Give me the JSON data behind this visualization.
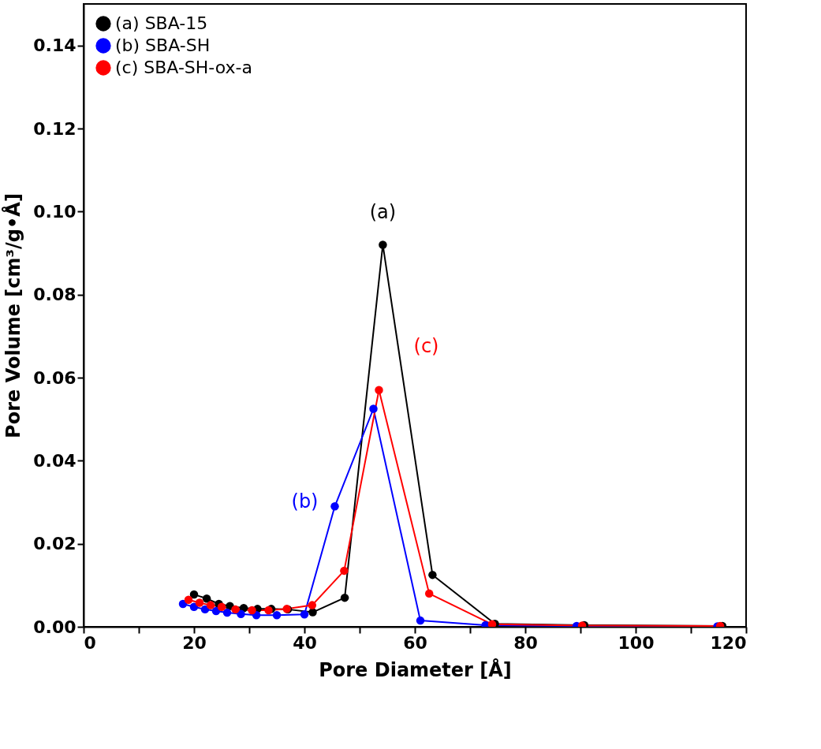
{
  "chart_data": {
    "type": "line",
    "xlabel": "Pore Diameter [Å]",
    "ylabel": "Pore Volume [cm³/g•Å]",
    "xlim": [
      0,
      120
    ],
    "ylim": [
      0,
      0.15
    ],
    "xticks": [
      0,
      {
        "value": 10,
        "label": null
      },
      20,
      {
        "value": 30,
        "label": null
      },
      40,
      {
        "value": 50,
        "label": null
      },
      60,
      {
        "value": 70,
        "label": null
      },
      80,
      {
        "value": 90,
        "label": null
      },
      100,
      {
        "value": 110,
        "label": null
      },
      120
    ],
    "yticks": [
      {
        "value": 0,
        "label": "0.00"
      },
      {
        "value": 0.02,
        "label": "0.02"
      },
      {
        "value": 0.04,
        "label": "0.04"
      },
      {
        "value": 0.06,
        "label": "0.06"
      },
      {
        "value": 0.08,
        "label": "0.08"
      },
      {
        "value": 0.1,
        "label": "0.10"
      },
      {
        "value": 0.12,
        "label": "0.12"
      },
      {
        "value": 0.14,
        "label": "0.14"
      }
    ],
    "grid": false,
    "legend": "top left",
    "marker": "circle",
    "line_style": "solid",
    "series": [
      {
        "name": "(a) SBA-15",
        "color": "#000000",
        "x": [
          20,
          22.3,
          24.5,
          26.5,
          29,
          31.5,
          34,
          37,
          41.5,
          47.3,
          54.2,
          63.2,
          74.5,
          90.7,
          115.7
        ],
        "values": [
          0.0078,
          0.0068,
          0.0055,
          0.005,
          0.0045,
          0.0043,
          0.0043,
          0.0042,
          0.0035,
          0.007,
          0.092,
          0.0125,
          0.0007,
          0.0004,
          0.0002
        ]
      },
      {
        "name": "(b) SBA-SH",
        "color": "#0000ff",
        "x": [
          18,
          20,
          22,
          24,
          26,
          28.5,
          31.3,
          35,
          40,
          45.5,
          52.5,
          61,
          72.8,
          89.3,
          114.8
        ],
        "values": [
          0.0055,
          0.0048,
          0.0042,
          0.0038,
          0.0034,
          0.0031,
          0.0028,
          0.0028,
          0.003,
          0.029,
          0.0525,
          0.0015,
          0.0004,
          0.0002,
          0.0001
        ]
      },
      {
        "name": "(c) SBA-SH-ox-a",
        "color": "#ff0000",
        "x": [
          19,
          21,
          23,
          25,
          27.5,
          30.5,
          33.5,
          36.8,
          41.4,
          47.2,
          53.5,
          62.6,
          74,
          90.3,
          115.3
        ],
        "values": [
          0.0065,
          0.0058,
          0.0052,
          0.0048,
          0.0042,
          0.004,
          0.004,
          0.0043,
          0.0052,
          0.0135,
          0.057,
          0.008,
          0.0006,
          0.0003,
          0.0002
        ]
      }
    ],
    "annotations": [
      {
        "text": "(a)",
        "x": 54.2,
        "y": 0.092
      },
      {
        "text": "(b)",
        "x": 45.5,
        "y": 0.029
      },
      {
        "text": "(c)",
        "x": 53.5,
        "y": 0.057
      }
    ]
  }
}
